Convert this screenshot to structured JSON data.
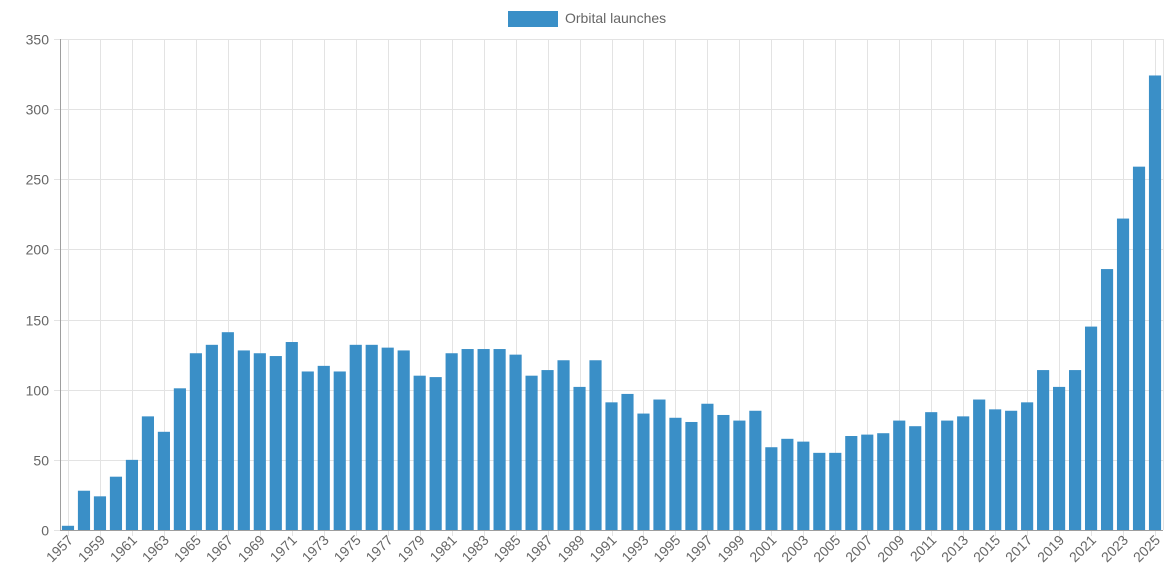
{
  "chart_data": {
    "type": "bar",
    "legend": {
      "position": "top"
    },
    "grid": true,
    "ylim": [
      0,
      350
    ],
    "yticks": [
      0,
      50,
      100,
      150,
      200,
      250,
      300,
      350
    ],
    "series": [
      {
        "name": "Orbital launches",
        "color": "#3a8fc7",
        "values": [
          3,
          28,
          24,
          38,
          50,
          81,
          70,
          101,
          126,
          132,
          141,
          128,
          126,
          124,
          134,
          113,
          117,
          113,
          132,
          132,
          130,
          128,
          110,
          109,
          126,
          129,
          129,
          129,
          125,
          110,
          114,
          121,
          102,
          121,
          91,
          97,
          83,
          93,
          80,
          77,
          90,
          82,
          78,
          85,
          59,
          65,
          63,
          55,
          55,
          67,
          68,
          69,
          78,
          74,
          84,
          78,
          81,
          93,
          86,
          85,
          91,
          114,
          102,
          114,
          145,
          186,
          222,
          259,
          324
        ]
      }
    ],
    "categories": [
      "1957",
      "1958",
      "1959",
      "1960",
      "1961",
      "1962",
      "1963",
      "1964",
      "1965",
      "1966",
      "1967",
      "1968",
      "1969",
      "1970",
      "1971",
      "1972",
      "1973",
      "1974",
      "1975",
      "1976",
      "1977",
      "1978",
      "1979",
      "1980",
      "1981",
      "1982",
      "1983",
      "1984",
      "1985",
      "1986",
      "1987",
      "1988",
      "1989",
      "1990",
      "1991",
      "1992",
      "1993",
      "1994",
      "1995",
      "1996",
      "1997",
      "1998",
      "1999",
      "2000",
      "2001",
      "2002",
      "2003",
      "2004",
      "2005",
      "2006",
      "2007",
      "2008",
      "2009",
      "2010",
      "2011",
      "2012",
      "2013",
      "2014",
      "2015",
      "2016",
      "2017",
      "2018",
      "2019",
      "2020",
      "2021",
      "2022",
      "2023",
      "2024",
      "2025"
    ]
  }
}
